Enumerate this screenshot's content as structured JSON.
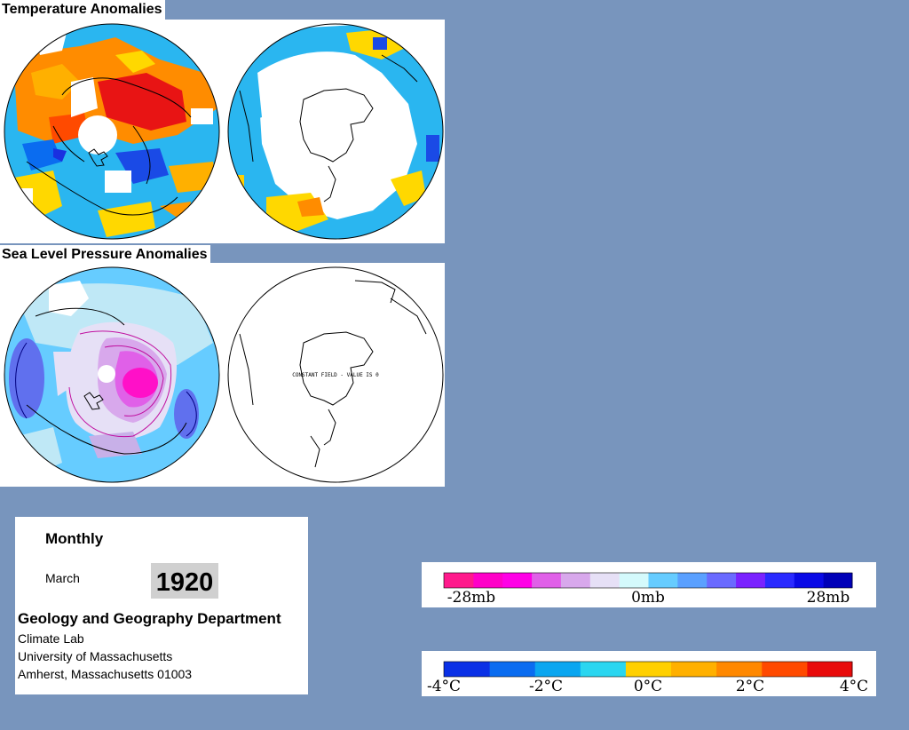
{
  "temperature_section": {
    "title": "Temperature Anomalies"
  },
  "pressure_section": {
    "title": "Sea Level Pressure Anomalies",
    "southern_annotation": "CONSTANT FIELD - VALUE IS 0"
  },
  "info": {
    "period": "Monthly",
    "month": "March",
    "year": "1920",
    "department": "Geology and Geography Department",
    "lab": "Climate Lab",
    "university": "University of Massachusetts",
    "address": "Amherst, Massachusetts 01003"
  },
  "pressure_legend": {
    "labels": [
      "-28mb",
      "0mb",
      "28mb"
    ],
    "colors": [
      "#ff1a8c",
      "#ff00c8",
      "#ff00e6",
      "#e060e8",
      "#d8a8ec",
      "#e6e0f6",
      "#d4fafc",
      "#66ccff",
      "#5aa0ff",
      "#6a6aff",
      "#7a22ff",
      "#2a2aff",
      "#0a0ae6",
      "#0000b8"
    ]
  },
  "temperature_legend": {
    "labels": [
      "-4°C",
      "-2°C",
      "0°C",
      "2°C",
      "4°C"
    ],
    "colors": [
      "#0a30e6",
      "#0a6cf0",
      "#0aa6f0",
      "#2ad6f0",
      "#ffd000",
      "#ffb000",
      "#ff8800",
      "#ff4a00",
      "#e80a0a"
    ]
  },
  "colors": {
    "background": "#7895bd",
    "ocean_blue": "#2ab6f0",
    "warm_orange": "#ff8c00",
    "warm_red": "#e81414",
    "warm_yellow": "#ffd800",
    "cold_blue": "#1a4ae6",
    "pressure_light": "#bfe8f6",
    "pressure_magenta": "#ff10c8",
    "pressure_lavender": "#c8b0e8",
    "pressure_blue": "#6070ee"
  },
  "icons": [
    "northern-hemisphere-globe",
    "southern-hemisphere-globe"
  ]
}
